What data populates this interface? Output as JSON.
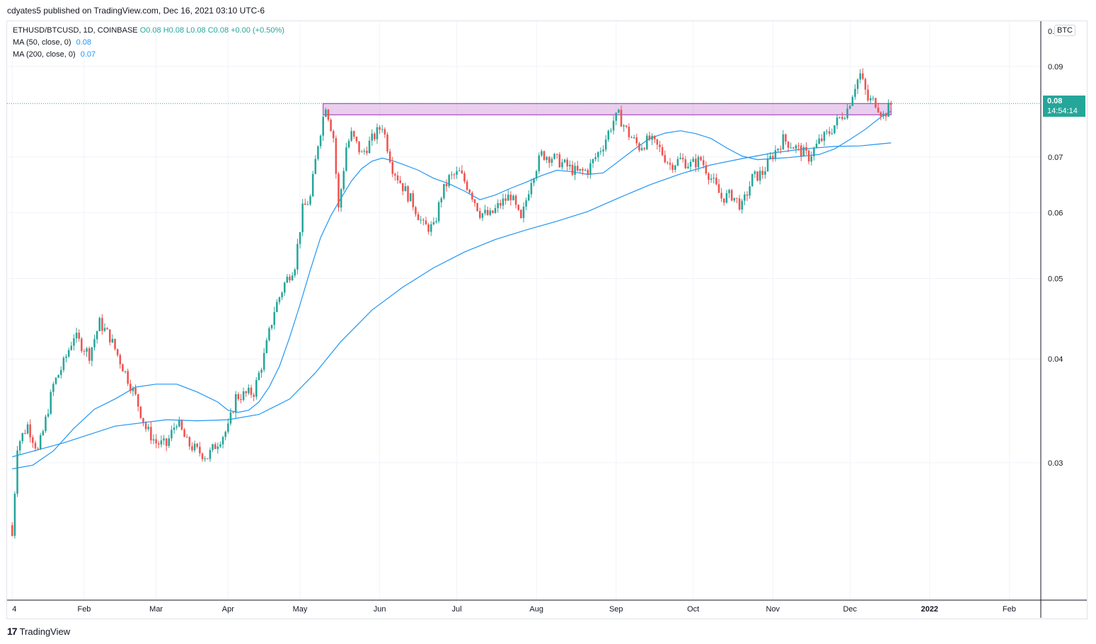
{
  "header": {
    "text": "cdyates5 published on TradingView.com, Dec 16, 2021 03:10 UTC-6"
  },
  "legend": {
    "symbol": "ETHUSD/BTCUSD, 1D, COINBASE",
    "ohlc": "O0.08  H0.08  L0.08  C0.08  +0.00 (+0.50%)",
    "ma50_label": "MA (50, close, 0)",
    "ma50_value": "0.08",
    "ma200_label": "MA (200, close, 0)",
    "ma200_value": "0.07"
  },
  "price_axis": {
    "currency_badge": "BTC",
    "top_label": "0."
  },
  "last_price": {
    "value": "0.08",
    "countdown": "14:54:14"
  },
  "footer": {
    "brand": "TradingView"
  },
  "colors": {
    "up": "#26a69a",
    "down": "#ef5350",
    "ma": "#2196f3",
    "zone": "#ce93d8"
  },
  "chart_data": {
    "type": "candlestick",
    "title": "ETHUSD/BTCUSD, 1D, COINBASE",
    "y_scale": "log",
    "y_ticks": [
      0.03,
      0.04,
      0.05,
      0.06,
      0.07,
      0.09
    ],
    "y_tick_labels": [
      "0.03",
      "0.04",
      "0.05",
      "0.06",
      "0.07",
      "0.09"
    ],
    "x_tick_labels": [
      "4",
      "Feb",
      "Mar",
      "Apr",
      "May",
      "Jun",
      "Jul",
      "Aug",
      "Sep",
      "Oct",
      "Nov",
      "Dec",
      "2022",
      "Feb"
    ],
    "x_tick_days": [
      0,
      28,
      56,
      84,
      112,
      143,
      173,
      204,
      235,
      265,
      296,
      326,
      357,
      388
    ],
    "x_range_days": [
      -2,
      400
    ],
    "y_range": [
      0.0205,
      0.102
    ],
    "resistance_zone": {
      "from_day": 121,
      "to_day": 342,
      "low": 0.0787,
      "high": 0.0812
    },
    "last_price_line": 0.0812,
    "price_path": {
      "days": [
        0,
        2,
        6,
        10,
        12,
        16,
        20,
        24,
        30,
        34,
        38,
        44,
        48,
        52,
        56,
        60,
        64,
        68,
        72,
        76,
        80,
        84,
        87,
        90,
        94,
        98,
        102,
        106,
        110,
        113,
        116,
        119,
        122,
        125,
        127,
        130,
        132,
        136,
        140,
        144,
        148,
        152,
        156,
        160,
        164,
        167,
        170,
        174,
        178,
        182,
        186,
        190,
        194,
        198,
        202,
        206,
        210,
        214,
        220,
        224,
        230,
        234,
        236,
        240,
        244,
        248,
        252,
        256,
        260,
        264,
        268,
        272,
        276,
        280,
        284,
        288,
        292,
        296,
        300,
        306,
        310,
        314,
        318,
        322,
        325,
        328,
        330,
        333,
        336,
        339,
        342
      ],
      "close": [
        0.0245,
        0.0315,
        0.0333,
        0.031,
        0.0327,
        0.0372,
        0.0395,
        0.0427,
        0.0405,
        0.0442,
        0.0425,
        0.0385,
        0.036,
        0.033,
        0.0317,
        0.0315,
        0.0337,
        0.0317,
        0.031,
        0.0305,
        0.0318,
        0.033,
        0.036,
        0.0362,
        0.0365,
        0.0403,
        0.0458,
        0.0493,
        0.052,
        0.0605,
        0.0625,
        0.0728,
        0.081,
        0.074,
        0.0605,
        0.072,
        0.0745,
        0.0705,
        0.0735,
        0.0765,
        0.068,
        0.0645,
        0.0615,
        0.0578,
        0.0575,
        0.063,
        0.066,
        0.067,
        0.064,
        0.06,
        0.0595,
        0.0615,
        0.063,
        0.0585,
        0.066,
        0.0705,
        0.07,
        0.0688,
        0.067,
        0.0675,
        0.0725,
        0.0775,
        0.0785,
        0.0745,
        0.072,
        0.0735,
        0.0715,
        0.0685,
        0.0695,
        0.0685,
        0.0695,
        0.066,
        0.0625,
        0.063,
        0.061,
        0.066,
        0.067,
        0.0705,
        0.0735,
        0.0715,
        0.07,
        0.073,
        0.075,
        0.078,
        0.08,
        0.0855,
        0.088,
        0.082,
        0.0815,
        0.0785,
        0.081
      ]
    },
    "series": [
      {
        "name": "MA (50, close, 0)",
        "days": [
          0,
          8,
          16,
          24,
          32,
          40,
          48,
          56,
          64,
          72,
          80,
          84,
          88,
          92,
          96,
          100,
          104,
          108,
          112,
          116,
          120,
          124,
          128,
          132,
          136,
          140,
          144,
          148,
          152,
          158,
          164,
          170,
          176,
          182,
          188,
          194,
          200,
          206,
          212,
          218,
          224,
          230,
          236,
          242,
          248,
          254,
          260,
          266,
          272,
          278,
          284,
          290,
          296,
          302,
          308,
          314,
          320,
          326,
          332,
          338,
          342
        ],
        "values": [
          0.0295,
          0.0298,
          0.031,
          0.033,
          0.0348,
          0.0358,
          0.037,
          0.0373,
          0.0373,
          0.0365,
          0.0355,
          0.0347,
          0.0345,
          0.0347,
          0.0355,
          0.037,
          0.0392,
          0.0425,
          0.0465,
          0.0512,
          0.056,
          0.0595,
          0.0625,
          0.0655,
          0.0678,
          0.0692,
          0.0698,
          0.0693,
          0.0686,
          0.0675,
          0.066,
          0.065,
          0.0637,
          0.0622,
          0.063,
          0.0642,
          0.0653,
          0.0665,
          0.0675,
          0.0672,
          0.0667,
          0.067,
          0.0692,
          0.0715,
          0.0737,
          0.0748,
          0.0753,
          0.0747,
          0.0737,
          0.0718,
          0.0702,
          0.0695,
          0.0697,
          0.0699,
          0.0702,
          0.0705,
          0.0716,
          0.0735,
          0.0756,
          0.0782,
          0.0795
        ]
      },
      {
        "name": "MA (200, close, 0)",
        "days": [
          0,
          20,
          40,
          60,
          72,
          84,
          96,
          108,
          118,
          128,
          140,
          152,
          164,
          176,
          188,
          200,
          212,
          224,
          236,
          248,
          260,
          272,
          284,
          296,
          308,
          320,
          330,
          336,
          342
        ],
        "values": [
          0.0305,
          0.0317,
          0.0332,
          0.0338,
          0.0337,
          0.0338,
          0.0343,
          0.0358,
          0.0385,
          0.042,
          0.0458,
          0.0488,
          0.0515,
          0.0538,
          0.0557,
          0.0572,
          0.0586,
          0.0602,
          0.0625,
          0.0648,
          0.0668,
          0.0685,
          0.0697,
          0.0708,
          0.0716,
          0.0721,
          0.0722,
          0.0725,
          0.0728
        ]
      }
    ]
  }
}
